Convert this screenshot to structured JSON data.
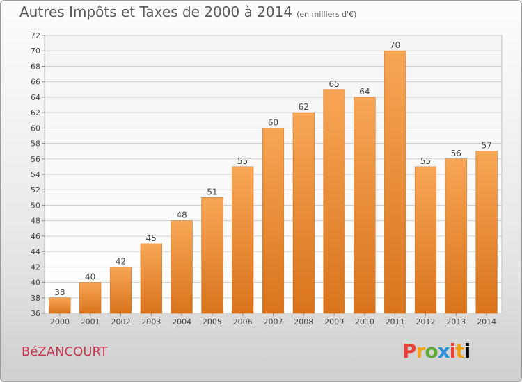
{
  "title": "Autres Impôts et Taxes de 2000 à 2014",
  "unit_label": "(en milliers d'€)",
  "commune": "BéZANCOURT",
  "logo": {
    "text": "Proxiti",
    "letters": [
      "P",
      "r",
      "o",
      "x",
      "i",
      "t",
      "i"
    ]
  },
  "chart_data": {
    "type": "bar",
    "title": "Autres Impôts et Taxes de 2000 à 2014",
    "subtitle": "(en milliers d'€)",
    "xlabel": "",
    "ylabel": "",
    "categories": [
      "2000",
      "2001",
      "2002",
      "2003",
      "2004",
      "2005",
      "2006",
      "2007",
      "2008",
      "2009",
      "2010",
      "2011",
      "2012",
      "2013",
      "2014"
    ],
    "values": [
      38,
      40,
      42,
      45,
      48,
      51,
      55,
      60,
      62,
      65,
      64,
      70,
      55,
      56,
      57
    ],
    "ylim": [
      36,
      72
    ],
    "yticks": [
      36,
      38,
      40,
      42,
      44,
      46,
      48,
      50,
      52,
      54,
      56,
      58,
      60,
      62,
      64,
      66,
      68,
      70,
      72
    ],
    "grid": true,
    "bar_color": "#f0953f"
  }
}
